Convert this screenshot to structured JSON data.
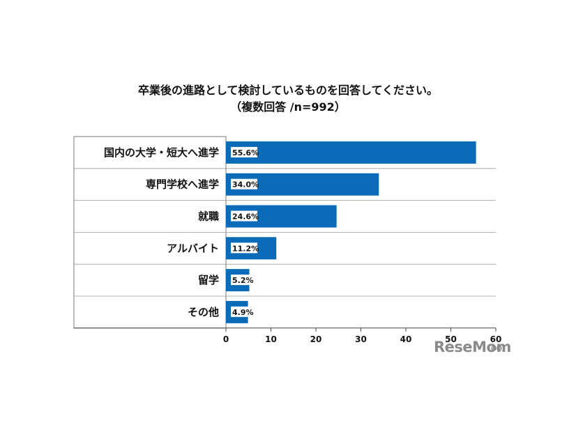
{
  "chart_data": {
    "type": "bar",
    "orientation": "horizontal",
    "title": "卒業後の進路として検討しているものを回答してください。",
    "subtitle": "（複数回答 /n=992）",
    "categories": [
      "国内の大学・短大へ進学",
      "専門学校へ進学",
      "就職",
      "アルバイト",
      "留学",
      "その他"
    ],
    "values": [
      55.6,
      34.0,
      24.6,
      11.2,
      5.2,
      4.9
    ],
    "value_labels": [
      "55.6%",
      "34.0%",
      "24.6%",
      "11.2%",
      "5.2%",
      "4.9%"
    ],
    "xlim": [
      0,
      60
    ],
    "xticks": [
      "0",
      "10",
      "20",
      "30",
      "40",
      "50",
      "60"
    ],
    "x_unit": "(%)",
    "bar_color": "#0b6bb8",
    "grid": false,
    "legend": false
  },
  "brand": "ReseMom"
}
